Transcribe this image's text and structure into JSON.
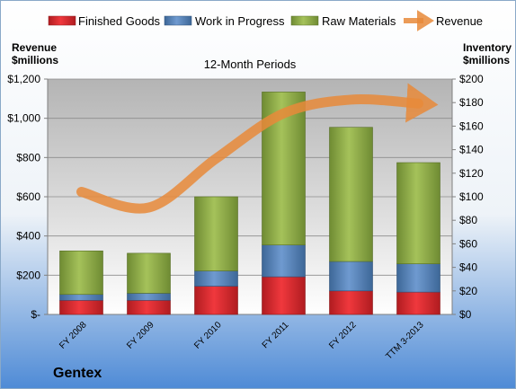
{
  "chart_data": {
    "type": "bar",
    "stacked": true,
    "title": "12-Month Periods",
    "company": "Gentex",
    "left_axis_title": [
      "Revenue",
      "$millions"
    ],
    "right_axis_title": [
      "Inventory",
      "$millions"
    ],
    "categories": [
      "FY 2008",
      "FY 2009",
      "FY 2010",
      "FY 2011",
      "FY 2012",
      "TTM 3-2013"
    ],
    "left_ticks": [
      "$-",
      "$200",
      "$400",
      "$600",
      "$800",
      "$1,000",
      "$1,200"
    ],
    "right_ticks": [
      "$0",
      "$20",
      "$40",
      "$60",
      "$80",
      "$100",
      "$120",
      "$140",
      "$160",
      "$180",
      "$200"
    ],
    "left_ylim": [
      0,
      1200
    ],
    "right_ylim": [
      0,
      200
    ],
    "bar_axis": "right",
    "line_axis": "left",
    "series": [
      {
        "name": "Finished Goods",
        "kind": "bar",
        "color": "#e0252b",
        "values": [
          12,
          12,
          24,
          32,
          20,
          19
        ]
      },
      {
        "name": "Work in Progress",
        "kind": "bar",
        "color": "#4f81bd",
        "values": [
          5,
          6,
          13,
          27,
          25,
          24
        ]
      },
      {
        "name": "Raw Materials",
        "kind": "bar",
        "color": "#8fad4a",
        "values": [
          37,
          34,
          63,
          130,
          114,
          86
        ]
      },
      {
        "name": "Revenue",
        "kind": "line",
        "color": "#e88a3a",
        "values": [
          625,
          545,
          795,
          1025,
          1095,
          1075
        ]
      }
    ],
    "legend_position": "top"
  }
}
